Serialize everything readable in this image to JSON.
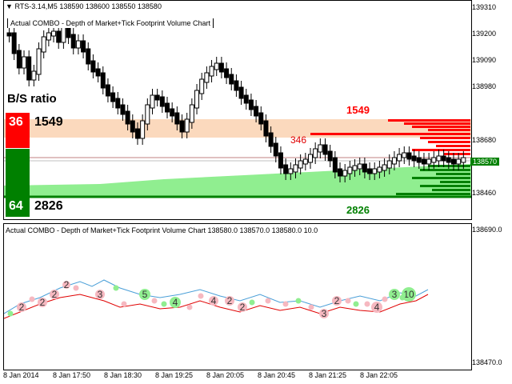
{
  "header": {
    "symbol": "RTS-3.14,M5",
    "ohlc": "138590 138600 138550 138580"
  },
  "main_title": "Actual COMBO - Depth of Market+Tick Footprint Volume Chart",
  "indicator_title": "Actual COMBO - Depth of Market+Tick Footprint Volume Chart 138580.0 138570.0 138580.0 10.0",
  "bs_panel": {
    "title": "B/S ratio",
    "sell_pct": "36",
    "sell_volume": "1549",
    "buy_pct": "64",
    "buy_volume": "2826"
  },
  "dom_labels": {
    "ask_total": "1549",
    "bid_total": "2826",
    "mid_label": "346"
  },
  "price_axis": {
    "main": [
      "139310",
      "139200",
      "139090",
      "138980",
      "138680",
      "138570",
      "138460"
    ],
    "current": "138570",
    "sub": [
      "138690.0",
      "138470.0"
    ]
  },
  "time_axis": [
    "8 Jan 2014",
    "8 Jan 17:50",
    "8 Jan 18:30",
    "8 Jan 19:25",
    "8 Jan 20:05",
    "8 Jan 20:45",
    "8 Jan 21:25",
    "8 Jan 22:05"
  ],
  "footprint_markers": [
    {
      "label": "2",
      "color": "pink"
    },
    {
      "label": "2",
      "color": "pink"
    },
    {
      "label": "2",
      "color": "pink"
    },
    {
      "label": "2",
      "color": "pink"
    },
    {
      "label": "3",
      "color": "pink"
    },
    {
      "label": "5",
      "color": "green"
    },
    {
      "label": "4",
      "color": "green"
    },
    {
      "label": "4",
      "color": "pink"
    },
    {
      "label": "2",
      "color": "pink"
    },
    {
      "label": "2",
      "color": "pink"
    },
    {
      "label": "3",
      "color": "pink"
    },
    {
      "label": "2",
      "color": "pink"
    },
    {
      "label": "4",
      "color": "pink"
    },
    {
      "label": "3",
      "color": "green"
    },
    {
      "label": "10",
      "color": "green"
    }
  ],
  "colors": {
    "sell": "#ff0000",
    "buy": "#008000",
    "ask_zone": "#fbd9bd",
    "bid_zone": "#90ee90",
    "marker_pink": "#f6b8c0",
    "marker_green": "#90ee90",
    "line_red": "#e00000",
    "line_blue": "#4a9fd8"
  }
}
